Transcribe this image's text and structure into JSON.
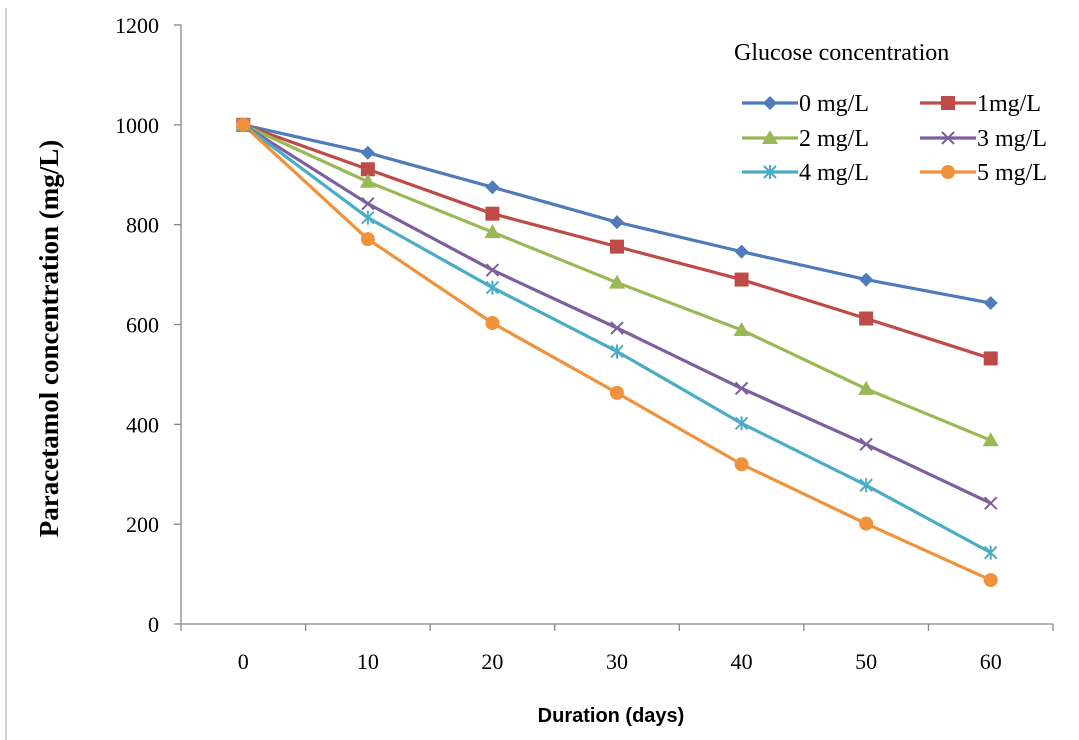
{
  "chart_data": {
    "type": "line",
    "title": "",
    "xlabel": "Duration (days)",
    "ylabel": "Paracetamol concentration (mg/L)",
    "x": [
      0,
      10,
      20,
      30,
      40,
      50,
      60
    ],
    "ylim": [
      0,
      1200
    ],
    "yticks": [
      0,
      200,
      400,
      600,
      800,
      1000,
      1200
    ],
    "grid": false,
    "legend_title": "Glucose concentration",
    "legend_position": "top-right",
    "series": [
      {
        "name": "0 mg/L",
        "color": "#4F7BBA",
        "marker": "diamond",
        "values": [
          1000,
          944,
          875,
          805,
          746,
          690,
          643
        ]
      },
      {
        "name": "1mg/L",
        "color": "#BE4B48",
        "marker": "square",
        "values": [
          1000,
          911,
          822,
          756,
          690,
          612,
          532
        ]
      },
      {
        "name": "2 mg/L",
        "color": "#98B954",
        "marker": "triangle",
        "values": [
          1000,
          886,
          785,
          684,
          589,
          471,
          368
        ]
      },
      {
        "name": "3 mg/L",
        "color": "#7D5FA0",
        "marker": "x",
        "values": [
          1000,
          842,
          709,
          593,
          472,
          360,
          242
        ]
      },
      {
        "name": "4 mg/L",
        "color": "#4BACC6",
        "marker": "star",
        "values": [
          1000,
          814,
          674,
          546,
          402,
          278,
          143
        ]
      },
      {
        "name": "5 mg/L",
        "color": "#F0923B",
        "marker": "circle",
        "values": [
          1000,
          771,
          603,
          463,
          320,
          201,
          88
        ]
      }
    ]
  }
}
